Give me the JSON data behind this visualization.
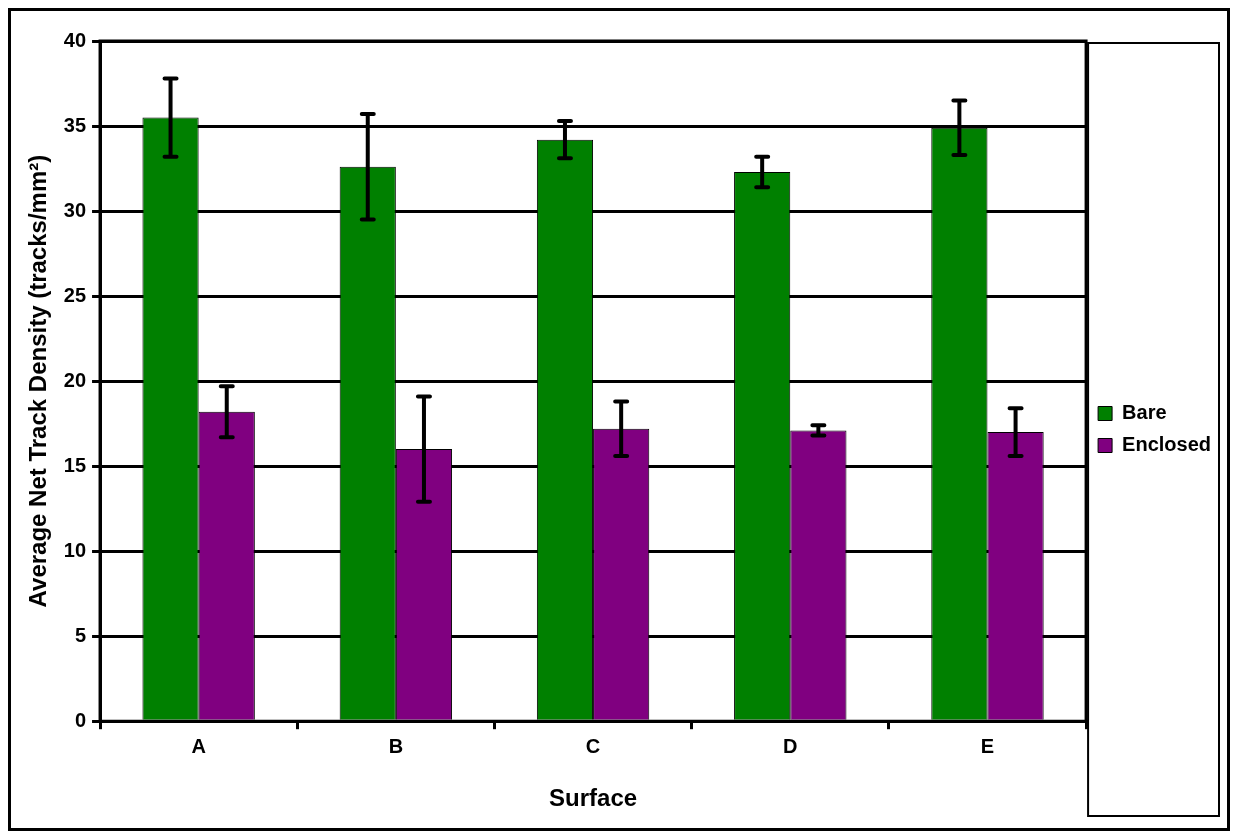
{
  "chart_data": {
    "type": "bar",
    "xlabel": "Surface",
    "ylabel": "Average Net Track Density (tracks/mm²)",
    "categories": [
      "A",
      "B",
      "C",
      "D",
      "E"
    ],
    "series": [
      {
        "name": "Bare",
        "color": "#008000",
        "values": [
          35.5,
          32.6,
          34.2,
          32.3,
          34.9
        ],
        "errors": [
          2.3,
          3.1,
          1.1,
          0.9,
          1.6
        ]
      },
      {
        "name": "Enclosed",
        "color": "#800080",
        "values": [
          18.2,
          16.0,
          17.2,
          17.1,
          17.0
        ],
        "errors": [
          1.5,
          3.1,
          1.6,
          0.3,
          1.4
        ]
      }
    ],
    "ylim": [
      0,
      40
    ],
    "yticks": [
      0,
      5,
      10,
      15,
      20,
      25,
      30,
      35,
      40
    ],
    "grid": "y",
    "legend": "right"
  }
}
